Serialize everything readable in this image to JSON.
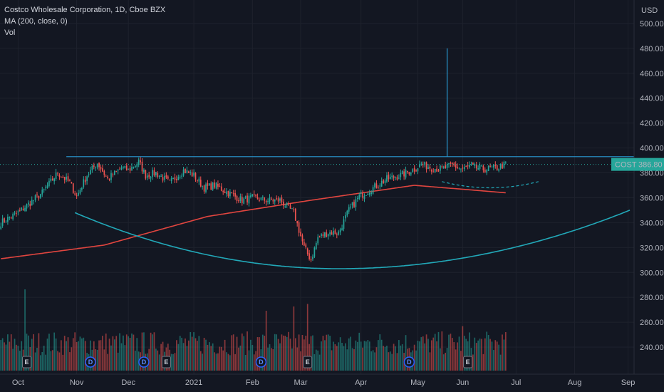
{
  "legend": {
    "title": "Costco Wholesale Corporation, 1D, Cboe BZX",
    "ma": "MA (200, close, 0)",
    "vol": "Vol"
  },
  "price_label": {
    "symbol": "COST",
    "value": "386.80"
  },
  "currency": "USD",
  "colors": {
    "background": "#131722",
    "up": "#26a69a",
    "down": "#ef5350",
    "ma": "#e0453f",
    "trend": "#2a9bd6",
    "cup": "#22a8b8",
    "last_price": "#26a69a",
    "badge_blue": "#2962ff"
  },
  "chart_data": {
    "type": "candlestick",
    "title": "Costco Wholesale Corporation, 1D, Cboe BZX",
    "y_ticks": [
      240,
      260,
      280,
      300,
      320,
      340,
      360,
      380,
      400,
      420,
      440,
      460,
      480,
      500
    ],
    "y_range": [
      228,
      512
    ],
    "last_price": 386.8,
    "x_labels": [
      "Oct",
      "Nov",
      "Dec",
      "2021",
      "Feb",
      "Mar",
      "Apr",
      "May",
      "Jun",
      "Jul",
      "Aug",
      "Sep"
    ],
    "x_label_bar_index": [
      10,
      44,
      74,
      112,
      146,
      174,
      209,
      242,
      268,
      299,
      333,
      364
    ],
    "bar_count": 368,
    "data_bars": 294,
    "close_series": [
      [
        0,
        340
      ],
      [
        10,
        348
      ],
      [
        24,
        364
      ],
      [
        33,
        380
      ],
      [
        40,
        372
      ],
      [
        44,
        361
      ],
      [
        50,
        378
      ],
      [
        56,
        388
      ],
      [
        62,
        375
      ],
      [
        70,
        384
      ],
      [
        74,
        382
      ],
      [
        80,
        389
      ],
      [
        84,
        378
      ],
      [
        90,
        380
      ],
      [
        98,
        372
      ],
      [
        106,
        382
      ],
      [
        112,
        378
      ],
      [
        118,
        368
      ],
      [
        124,
        370
      ],
      [
        132,
        364
      ],
      [
        140,
        358
      ],
      [
        146,
        360
      ],
      [
        154,
        358
      ],
      [
        162,
        358
      ],
      [
        170,
        348
      ],
      [
        176,
        320
      ],
      [
        180,
        310
      ],
      [
        184,
        328
      ],
      [
        190,
        332
      ],
      [
        196,
        332
      ],
      [
        202,
        350
      ],
      [
        208,
        361
      ],
      [
        216,
        368
      ],
      [
        224,
        375
      ],
      [
        232,
        378
      ],
      [
        240,
        383
      ],
      [
        244,
        387
      ],
      [
        250,
        384
      ],
      [
        256,
        383
      ],
      [
        262,
        386
      ],
      [
        268,
        383
      ],
      [
        272,
        385
      ],
      [
        280,
        383
      ],
      [
        288,
        384
      ],
      [
        293,
        387
      ]
    ],
    "ma200_series": [
      [
        0,
        311
      ],
      [
        60,
        322
      ],
      [
        120,
        345
      ],
      [
        180,
        358
      ],
      [
        240,
        370
      ],
      [
        293,
        364
      ]
    ],
    "volume_scale_max": 100,
    "volume_spikes": [
      [
        14,
        95
      ],
      [
        154,
        70
      ],
      [
        170,
        75
      ],
      [
        178,
        78
      ],
      [
        268,
        52
      ],
      [
        293,
        45
      ]
    ],
    "earnings_markers": [
      {
        "bar": 15,
        "label": "E"
      },
      {
        "bar": 96,
        "label": "E"
      },
      {
        "bar": 178,
        "label": "E"
      },
      {
        "bar": 271,
        "label": "E"
      }
    ],
    "dividend_markers": [
      {
        "bar": 52,
        "label": "D"
      },
      {
        "bar": 83,
        "label": "D"
      },
      {
        "bar": 151,
        "label": "D"
      },
      {
        "bar": 237,
        "label": "D"
      }
    ],
    "annotations": {
      "resistance": {
        "from_bar": 38,
        "to_bar": 368,
        "price": 393
      },
      "vertical": {
        "bar": 259,
        "from_price": 393,
        "to_price": 480
      },
      "cup": {
        "from_bar": 43,
        "to_bar": 365,
        "start_price": 348,
        "bottom_price": 303,
        "end_price": 350,
        "bottom_bar": 196
      },
      "handle": {
        "from_bar": 256,
        "to_bar": 312,
        "left_price": 373,
        "bottom_price": 368,
        "right_price": 373
      }
    }
  }
}
